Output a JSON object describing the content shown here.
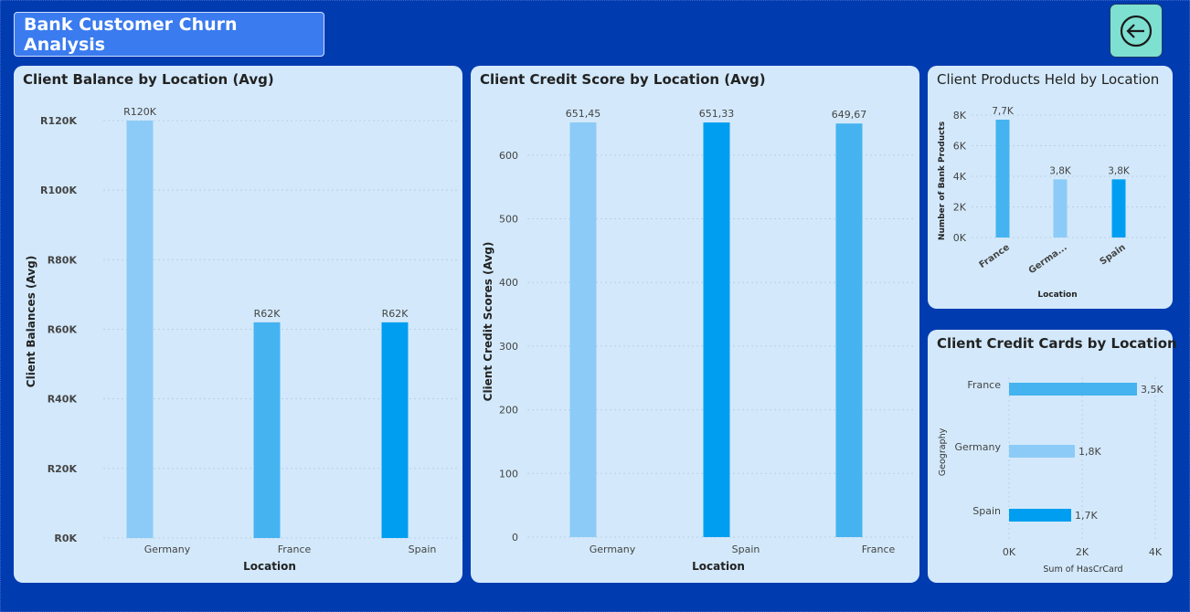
{
  "header": {
    "title": "Bank Customer Churn Analysis",
    "back_icon": "arrow-left-circle-icon"
  },
  "colors": {
    "page_bg": "#003bb0",
    "card_bg": "#d3e9fb",
    "bar_light": "#8ccbf7",
    "bar_mid": "#45b3f0",
    "bar_dark": "#009ef0",
    "back_button": "#7ee0d0"
  },
  "charts": {
    "balance": {
      "title": "Client Balance by Location (Avg)"
    },
    "credit": {
      "title": "Client Credit Score by Location (Avg)"
    },
    "products": {
      "title": "Client Products Held by Location"
    },
    "cards": {
      "title": "Client Credit Cards by Location"
    }
  },
  "chart_data": [
    {
      "id": "balance",
      "type": "bar",
      "title": "Client Balance by Location (Avg)",
      "xlabel": "Location",
      "ylabel": "Client Balances (Avg)",
      "categories": [
        "Germany",
        "France",
        "Spain"
      ],
      "values": [
        120000,
        62000,
        62000
      ],
      "data_labels": [
        "R120K",
        "R62K",
        "R62K"
      ],
      "yticks": [
        0,
        20000,
        40000,
        60000,
        80000,
        100000,
        120000
      ],
      "ytick_labels": [
        "R0K",
        "R20K",
        "R40K",
        "R60K",
        "R80K",
        "R100K",
        "R120K"
      ],
      "ylim": [
        0,
        120000
      ],
      "bar_colors": [
        "#8ccbf7",
        "#45b3f0",
        "#009ef0"
      ],
      "grid": true
    },
    {
      "id": "credit",
      "type": "bar",
      "title": "Client Credit Score by Location (Avg)",
      "xlabel": "Location",
      "ylabel": "Client Credit Scores (Avg)",
      "categories": [
        "Germany",
        "Spain",
        "France"
      ],
      "values": [
        651.45,
        651.33,
        649.67
      ],
      "data_labels": [
        "651,45",
        "651,33",
        "649,67"
      ],
      "yticks": [
        0,
        100,
        200,
        300,
        400,
        500,
        600
      ],
      "ytick_labels": [
        "0",
        "100",
        "200",
        "300",
        "400",
        "500",
        "600"
      ],
      "ylim": [
        0,
        651.45
      ],
      "bar_colors": [
        "#8ccbf7",
        "#009ef0",
        "#45b3f0"
      ],
      "grid": true
    },
    {
      "id": "products",
      "type": "bar",
      "title": "Client Products Held by Location",
      "xlabel": "Location",
      "ylabel": "Number of Bank Products",
      "categories": [
        "France",
        "Germa...",
        "Spain"
      ],
      "values": [
        7700,
        3800,
        3800
      ],
      "data_labels": [
        "7,7K",
        "3,8K",
        "3,8K"
      ],
      "yticks": [
        0,
        2000,
        4000,
        6000,
        8000
      ],
      "ytick_labels": [
        "0K",
        "2K",
        "4K",
        "6K",
        "8K"
      ],
      "ylim": [
        0,
        8000
      ],
      "bar_colors": [
        "#45b3f0",
        "#8ccbf7",
        "#009ef0"
      ],
      "grid": true
    },
    {
      "id": "cards",
      "type": "bar",
      "orientation": "horizontal",
      "title": "Client Credit Cards by Location",
      "xlabel": "Sum of HasCrCard",
      "ylabel": "Geography",
      "categories": [
        "France",
        "Germany",
        "Spain"
      ],
      "values": [
        3500,
        1800,
        1700
      ],
      "data_labels": [
        "3,5K",
        "1,8K",
        "1,7K"
      ],
      "xticks": [
        0,
        2000,
        4000
      ],
      "xtick_labels": [
        "0K",
        "2K",
        "4K"
      ],
      "xlim": [
        0,
        4000
      ],
      "bar_colors": [
        "#45b3f0",
        "#8ccbf7",
        "#009ef0"
      ],
      "grid": true
    }
  ]
}
